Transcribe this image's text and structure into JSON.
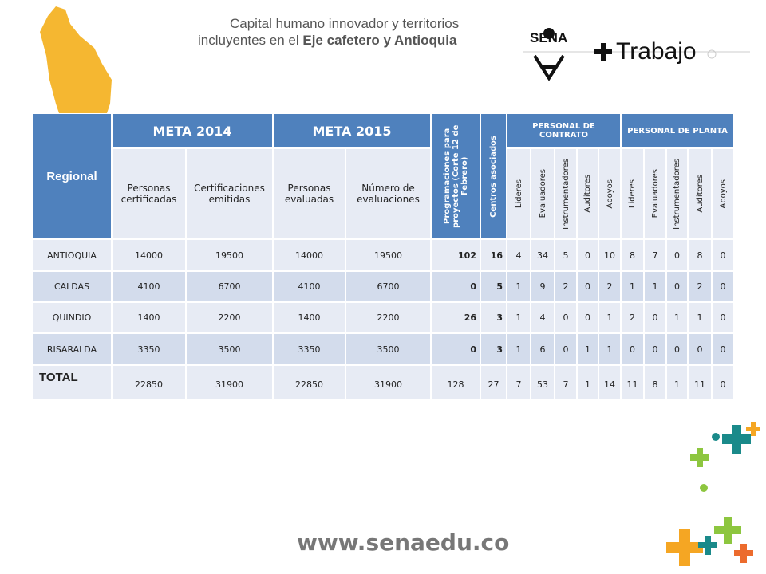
{
  "header": {
    "line1": "Capital humano innovador y territorios",
    "line2_prefix": "incluyentes en el",
    "line2_bold": "Eje cafetero y Antioquia",
    "logo": "SENA",
    "brand": "Trabajo"
  },
  "table": {
    "headers": {
      "regional": "Regional",
      "meta2014": "META 2014",
      "meta2015": "META 2015",
      "programaciones": "Programaciones para proyectos (Corte 12 de Febrero)",
      "centros": "Centros asociados",
      "contrato": "PERSONAL DE CONTRATO",
      "planta": "PERSONAL DE PLANTA",
      "sub": [
        "Personas certificadas",
        "Certificaciones emitidas",
        "Personas evaluadas",
        "Número de evaluaciones"
      ],
      "contrato_roles": [
        "Lideres",
        "Evaluadores",
        "Instrumentadores",
        "Auditores",
        "Apoyos"
      ],
      "planta_roles": [
        "Lideres",
        "Evaluadores",
        "Instrumentadores",
        "Auditores",
        "Apoyos"
      ]
    },
    "rows": [
      {
        "label": "ANTIOQUIA",
        "values": [
          14000,
          19500,
          14000,
          19500,
          102,
          16,
          4,
          34,
          5,
          0,
          10,
          8,
          7,
          0,
          8,
          0
        ]
      },
      {
        "label": "CALDAS",
        "values": [
          4100,
          6700,
          4100,
          6700,
          0,
          5,
          1,
          9,
          2,
          0,
          2,
          1,
          1,
          0,
          2,
          0
        ]
      },
      {
        "label": "QUINDIO",
        "values": [
          1400,
          2200,
          1400,
          2200,
          26,
          3,
          1,
          4,
          0,
          0,
          1,
          2,
          0,
          1,
          1,
          0
        ]
      },
      {
        "label": "RISARALDA",
        "values": [
          3350,
          3500,
          3350,
          3500,
          0,
          3,
          1,
          6,
          0,
          1,
          1,
          0,
          0,
          0,
          0,
          0
        ]
      },
      {
        "label": "TOTAL",
        "values": [
          22850,
          31900,
          22850,
          31900,
          128,
          27,
          7,
          53,
          7,
          1,
          14,
          11,
          8,
          1,
          11,
          0
        ]
      }
    ]
  },
  "footer": {
    "url": "www.senaedu.co"
  }
}
